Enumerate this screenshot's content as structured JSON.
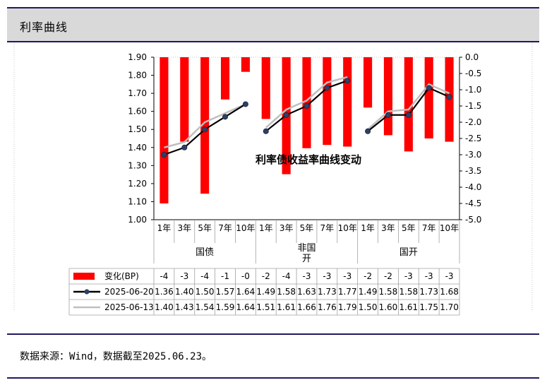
{
  "title": "利率曲线",
  "source": "数据来源：Wind，数据截至2025.06.23。",
  "chart_data": {
    "type": "bar+line",
    "title": "利率债收益率曲线变动",
    "left_axis": {
      "min": 1.0,
      "max": 1.9,
      "step": 0.1,
      "ticks": [
        "1.90",
        "1.80",
        "1.70",
        "1.60",
        "1.50",
        "1.40",
        "1.30",
        "1.20",
        "1.10",
        "1.00"
      ]
    },
    "right_axis": {
      "min": -5.0,
      "max": 0.0,
      "step": 0.5,
      "ticks": [
        "0.0",
        "-0.5",
        "-1.0",
        "-1.5",
        "-2.0",
        "-2.5",
        "-3.0",
        "-3.5",
        "-4.0",
        "-4.5",
        "-5.0"
      ]
    },
    "groups": [
      {
        "name": "国债",
        "categories": [
          "1年",
          "3年",
          "5年",
          "7年",
          "10年"
        ]
      },
      {
        "name": "非国\n开",
        "categories": [
          "1年",
          "3年",
          "5年",
          "7年",
          "10年"
        ]
      },
      {
        "name": "国开",
        "categories": [
          "1年",
          "3年",
          "5年",
          "7年",
          "10年"
        ]
      }
    ],
    "series": [
      {
        "name": "变化(BP)",
        "type": "bar",
        "axis": "right",
        "color": "#ff0000",
        "values": [
          -4.5,
          -2.6,
          -4.2,
          -1.3,
          -0.45,
          -1.9,
          -3.6,
          -2.8,
          -2.7,
          -2.75,
          -1.55,
          -2.4,
          -2.9,
          -2.5,
          -2.6
        ],
        "labels": [
          "-4",
          "-3",
          "-4",
          "-1",
          "-0",
          "-2",
          "-4",
          "-3",
          "-3",
          "-3",
          "-2",
          "-2",
          "-3",
          "-3",
          "-3"
        ]
      },
      {
        "name": "2025-06-20",
        "type": "line",
        "axis": "left",
        "color": "#000000",
        "marker_color": "#2f4066",
        "values": [
          1.36,
          1.4,
          1.5,
          1.57,
          1.64,
          1.49,
          1.58,
          1.63,
          1.73,
          1.77,
          1.49,
          1.58,
          1.58,
          1.73,
          1.68
        ],
        "labels": [
          "1.36",
          "1.40",
          "1.50",
          "1.57",
          "1.64",
          "1.49",
          "1.58",
          "1.63",
          "1.73",
          "1.77",
          "1.49",
          "1.58",
          "1.58",
          "1.73",
          "1.68"
        ]
      },
      {
        "name": "2025-06-13",
        "type": "line",
        "axis": "left",
        "color": "#bfbfbf",
        "values": [
          1.4,
          1.43,
          1.54,
          1.59,
          1.64,
          1.51,
          1.61,
          1.66,
          1.76,
          1.79,
          1.5,
          1.6,
          1.61,
          1.75,
          1.7
        ],
        "labels": [
          "1.40",
          "1.43",
          "1.54",
          "1.59",
          "1.64",
          "1.51",
          "1.61",
          "1.66",
          "1.76",
          "1.79",
          "1.50",
          "1.60",
          "1.61",
          "1.75",
          "1.70"
        ]
      }
    ],
    "grid": true,
    "legend": "table below chart"
  }
}
